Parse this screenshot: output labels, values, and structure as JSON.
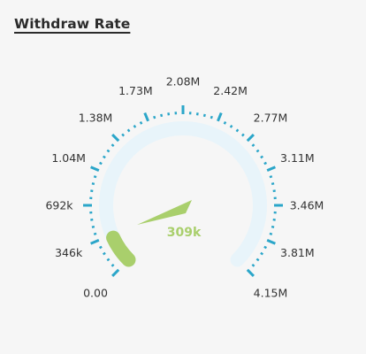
{
  "title": "Withdraw Rate",
  "chart_data": {
    "type": "gauge",
    "title": "Withdraw Rate",
    "min": 0,
    "max": 4150000,
    "value": 309000,
    "value_label": "309k",
    "tick_labels": [
      "0.00",
      "346k",
      "692k",
      "1.04M",
      "1.38M",
      "1.73M",
      "2.08M",
      "2.42M",
      "2.77M",
      "3.11M",
      "3.46M",
      "3.81M",
      "4.15M"
    ],
    "colors": {
      "track": "#e8f4fa",
      "fill": "#a9cf6c",
      "ticks": "#2ba6c9",
      "needle": "#a9cf6c",
      "value_text": "#a9cf6c"
    }
  }
}
